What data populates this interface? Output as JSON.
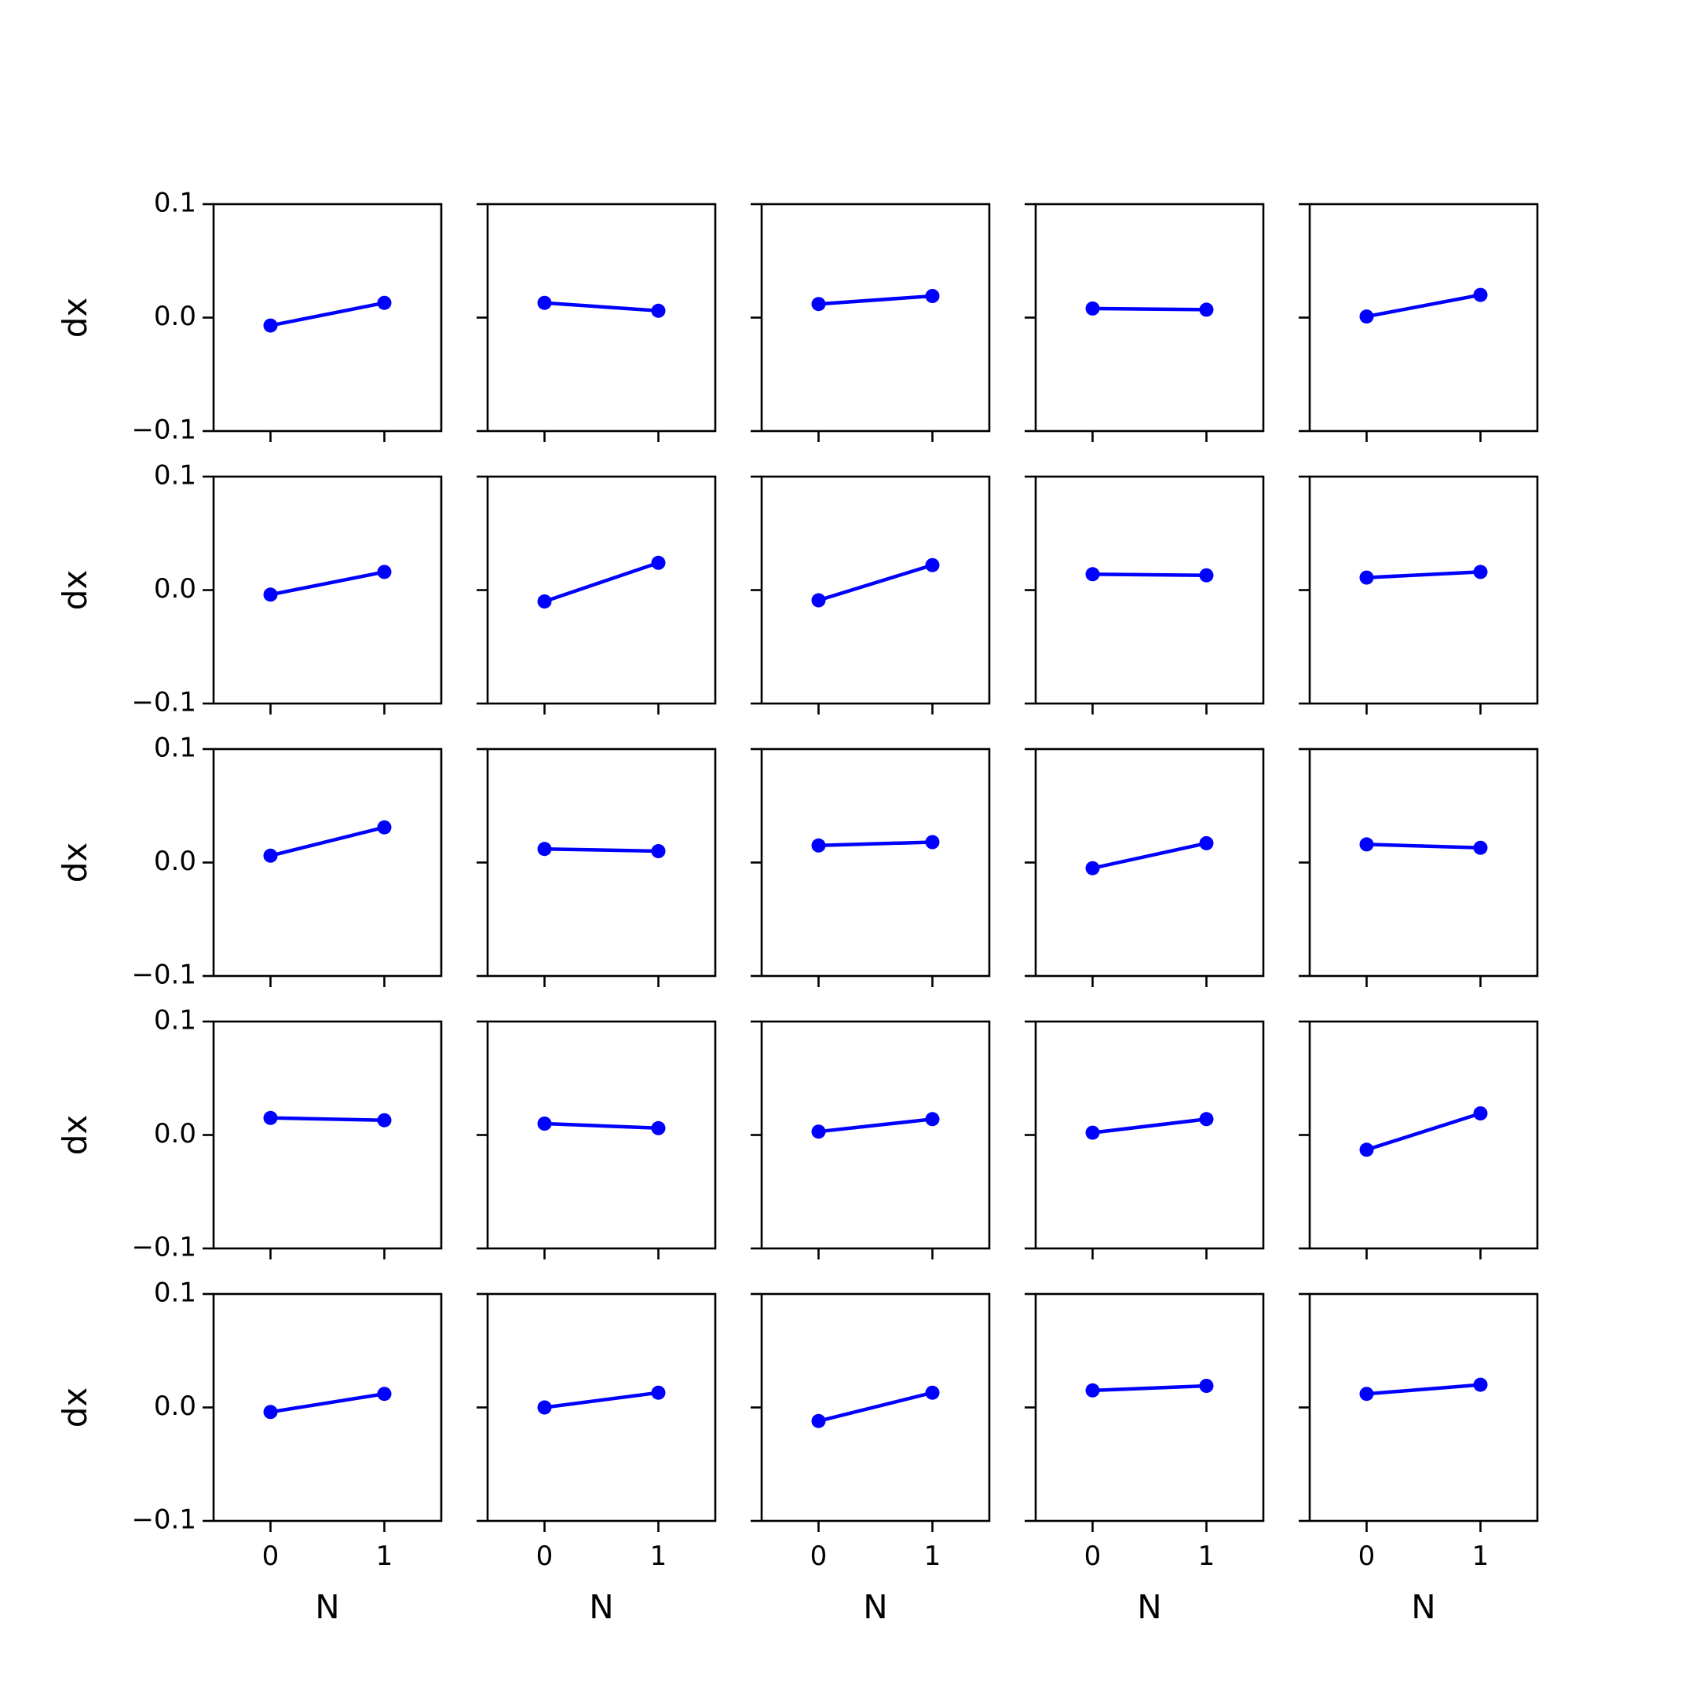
{
  "chart_data": {
    "type": "line",
    "layout": {
      "rows": 5,
      "cols": 5
    },
    "xlabel": "N",
    "ylabel": "dx",
    "xticks": [
      "0",
      "1"
    ],
    "yticks": [
      "0.1",
      "0.0",
      "−0.1"
    ],
    "ylim": [
      -0.1,
      0.1
    ],
    "xlim": [
      -0.5,
      1.5
    ],
    "series_color": "#0000ff",
    "x": [
      0,
      1
    ],
    "panels": [
      [
        [
          -0.007,
          0.013
        ],
        [
          0.013,
          0.006
        ],
        [
          0.012,
          0.019
        ],
        [
          0.008,
          0.007
        ],
        [
          0.001,
          0.02
        ]
      ],
      [
        [
          -0.004,
          0.016
        ],
        [
          -0.01,
          0.024
        ],
        [
          -0.009,
          0.022
        ],
        [
          0.014,
          0.013
        ],
        [
          0.011,
          0.016
        ]
      ],
      [
        [
          0.006,
          0.031
        ],
        [
          0.012,
          0.01
        ],
        [
          0.015,
          0.018
        ],
        [
          -0.005,
          0.017
        ],
        [
          0.016,
          0.013
        ]
      ],
      [
        [
          0.015,
          0.013
        ],
        [
          0.01,
          0.006
        ],
        [
          0.003,
          0.014
        ],
        [
          0.002,
          0.014
        ],
        [
          -0.013,
          0.019
        ]
      ],
      [
        [
          -0.004,
          0.012
        ],
        [
          0.0,
          0.013
        ],
        [
          -0.012,
          0.013
        ],
        [
          0.015,
          0.019
        ],
        [
          0.012,
          0.02
        ]
      ]
    ]
  }
}
